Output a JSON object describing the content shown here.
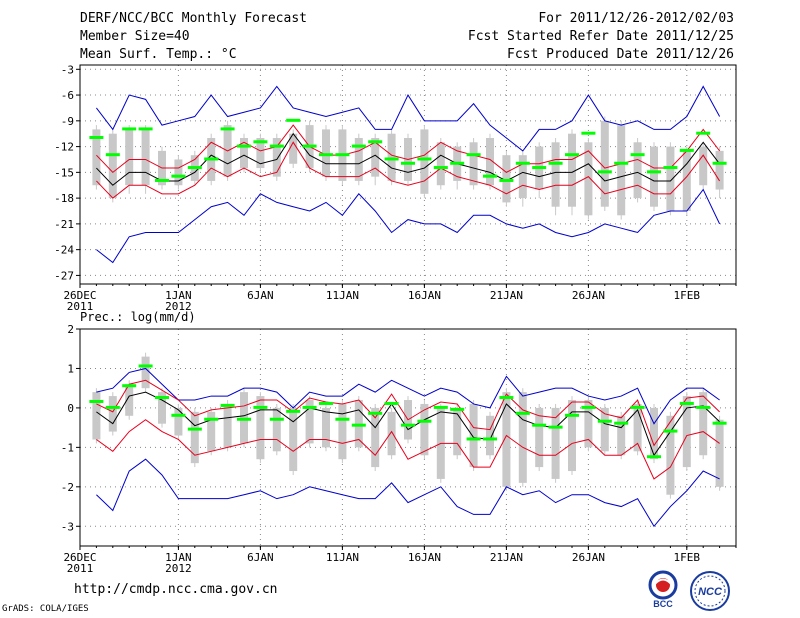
{
  "header": {
    "title": "DERF/NCC/BCC Monthly Forecast",
    "member_size": "Member Size=40",
    "variable": "Mean Surf. Temp.: °C",
    "forecast_range": "For 2011/12/26-2012/02/03",
    "fcst_started": "Fcst Started Refer Date 2011/12/25",
    "fcst_produced": "Fcst Produced Date 2011/12/26"
  },
  "footer": {
    "url": "http://cmdp.ncc.cma.gov.cn",
    "credit": "GrADS: COLA/IGES",
    "logo_bcc_text": "BCC",
    "logo_ncc_text": "NCC"
  },
  "colors": {
    "box": "#c8c8c8",
    "median": "#00ff00",
    "mean": "#000000",
    "std": "#e8001c",
    "range": "#0000cc",
    "grid": "#888888"
  },
  "chart_data": [
    {
      "type": "box-ensemble",
      "title": "Mean Surf. Temp.: °C",
      "ylabel": "°C",
      "ylim": [
        -28,
        -2.5
      ],
      "yticks": [
        -3,
        -6,
        -9,
        -12,
        -15,
        -18,
        -21,
        -24,
        -27
      ],
      "xlim": [
        0,
        40
      ],
      "xticks": [
        {
          "x": 0,
          "label": "26DEC",
          "sub": "2011"
        },
        {
          "x": 6,
          "label": "1JAN",
          "sub": "2012"
        },
        {
          "x": 11,
          "label": "6JAN",
          "sub": ""
        },
        {
          "x": 16,
          "label": "11JAN",
          "sub": ""
        },
        {
          "x": 21,
          "label": "16JAN",
          "sub": ""
        },
        {
          "x": 26,
          "label": "21JAN",
          "sub": ""
        },
        {
          "x": 31,
          "label": "26JAN",
          "sub": ""
        },
        {
          "x": 37,
          "label": "1FEB",
          "sub": ""
        }
      ],
      "days": [
        1,
        2,
        3,
        4,
        5,
        6,
        7,
        8,
        9,
        10,
        11,
        12,
        13,
        14,
        15,
        16,
        17,
        18,
        19,
        20,
        21,
        22,
        23,
        24,
        25,
        26,
        27,
        28,
        29,
        30,
        31,
        32,
        33,
        34,
        35,
        36,
        37,
        38,
        39
      ],
      "box_low": [
        -16.5,
        -18,
        -16.5,
        -16.5,
        -16.5,
        -16.5,
        -16,
        -16,
        -15.5,
        -14.5,
        -14.5,
        -15.5,
        -14,
        -14.5,
        -15.5,
        -16,
        -16,
        -15.5,
        -16,
        -16,
        -17.5,
        -16.5,
        -16,
        -16.5,
        -16.5,
        -18.5,
        -18,
        -17,
        -19,
        -19,
        -20,
        -19,
        -20,
        -18,
        -19,
        -19.5,
        -19.5,
        -16.5,
        -17
      ],
      "box_high": [
        -10,
        -10.5,
        -10,
        -10,
        -12.5,
        -13.5,
        -13,
        -11,
        -9.5,
        -11,
        -11,
        -11,
        -10.5,
        -9.5,
        -10,
        -10,
        -11,
        -11,
        -10.5,
        -11,
        -10,
        -11.5,
        -12,
        -11.5,
        -11,
        -13,
        -13,
        -12,
        -11.5,
        -10.5,
        -11.5,
        -9,
        -9.5,
        -11.5,
        -12,
        -12,
        -12.5,
        -12,
        -12.5
      ],
      "whisker_low": [
        -17,
        -18.5,
        -17.5,
        -17.5,
        -17,
        -17,
        -16.5,
        -16.5,
        -16,
        -15,
        -15,
        -16,
        -14.5,
        -15,
        -16,
        -16.5,
        -16.5,
        -16.5,
        -16.5,
        -16.5,
        -18,
        -17,
        -17,
        -17,
        -17,
        -19,
        -19,
        -18,
        -20,
        -20,
        -20.5,
        -19.5,
        -20.5,
        -18.5,
        -19.5,
        -20,
        -20,
        -17,
        -18
      ],
      "whisker_high": [
        -9.5,
        -10,
        -9.5,
        -9.5,
        -12,
        -13,
        -12.5,
        -10.5,
        -9,
        -10.5,
        -10.5,
        -10.5,
        -10,
        -9,
        -9.5,
        -9.5,
        -10.5,
        -10.5,
        -10,
        -10.5,
        -9.5,
        -11,
        -11.5,
        -11,
        -10.5,
        -12.5,
        -12.5,
        -11.5,
        -11,
        -10,
        -11,
        -8.5,
        -9,
        -11,
        -11.5,
        -11.5,
        -12,
        -11.5,
        -12
      ],
      "median": [
        -11,
        -13,
        -10,
        -10,
        -16,
        -15.5,
        -14.5,
        -13.5,
        -10,
        -12,
        -11.5,
        -12,
        -9,
        -12,
        -13,
        -13,
        -12,
        -11.5,
        -13.5,
        -14,
        -13.5,
        -14.5,
        -14,
        -13,
        -15.5,
        -16,
        -14,
        -14.5,
        -14,
        -13,
        -10.5,
        -15,
        -14,
        -13,
        -15,
        -14.5,
        -12.5,
        -10.5,
        -14
      ],
      "mean": [
        -14.5,
        -16.5,
        -15,
        -15,
        -16,
        -16,
        -15,
        -13,
        -14,
        -13,
        -14,
        -13.5,
        -10.5,
        -13,
        -14,
        -14,
        -14,
        -13,
        -14.5,
        -15,
        -14.5,
        -13,
        -14,
        -14.5,
        -15,
        -16,
        -15,
        -15.5,
        -15,
        -15,
        -14,
        -16,
        -15.5,
        -15,
        -16,
        -16,
        -14,
        -11.5,
        -14
      ],
      "std_upper": [
        -13,
        -15,
        -13.5,
        -13.5,
        -14.5,
        -14.5,
        -13.5,
        -11.5,
        -12.5,
        -11.5,
        -12.5,
        -12,
        -9.5,
        -12,
        -13,
        -13,
        -12.5,
        -11.5,
        -13,
        -13.5,
        -13,
        -11.5,
        -12.5,
        -13,
        -13.5,
        -15,
        -14,
        -14,
        -13.5,
        -13.5,
        -12.5,
        -14.5,
        -14,
        -13.5,
        -14.5,
        -14.5,
        -12.5,
        -10,
        -12.5
      ],
      "std_lower": [
        -16,
        -18,
        -16.5,
        -16.5,
        -17.5,
        -17.5,
        -16.5,
        -14.5,
        -15.5,
        -14.5,
        -15.5,
        -15,
        -11.5,
        -14.5,
        -15.5,
        -15.5,
        -15.5,
        -14.5,
        -16,
        -16.5,
        -16,
        -14.5,
        -15.5,
        -16,
        -16.5,
        -17.5,
        -16.5,
        -17,
        -16.5,
        -16.5,
        -15.5,
        -17.5,
        -17,
        -16.5,
        -17.5,
        -17.5,
        -15.5,
        -13,
        -16
      ],
      "max": [
        -7.5,
        -10,
        -6,
        -6.5,
        -9.5,
        -9,
        -8.5,
        -6,
        -8.5,
        -8,
        -7.5,
        -5,
        -7.5,
        -8,
        -8.5,
        -8,
        -7.5,
        -10,
        -10,
        -6,
        -9,
        -9,
        -9,
        -7,
        -9.5,
        -11,
        -12.5,
        -10,
        -10,
        -9,
        -6,
        -9,
        -9.5,
        -9,
        -10,
        -10,
        -8.5,
        -5,
        -8.5
      ],
      "min": [
        -24,
        -25.5,
        -22.5,
        -22,
        -22,
        -22,
        -20.5,
        -19,
        -18.5,
        -20,
        -17.5,
        -18.5,
        -19,
        -19.5,
        -18.5,
        -20,
        -17.5,
        -19.5,
        -22,
        -20.5,
        -21,
        -21,
        -22,
        -20,
        -20,
        -21,
        -21.5,
        -21,
        -22,
        -22.5,
        -22,
        -21,
        -21.5,
        -22,
        -20,
        -19.5,
        -19.5,
        -17,
        -21
      ]
    },
    {
      "type": "box-ensemble",
      "title": "Prec.: log(mm/d)",
      "ylabel": "log(mm/d)",
      "ylim": [
        -3.5,
        2
      ],
      "yticks": [
        2,
        1,
        0,
        -1,
        -2,
        -3
      ],
      "xlim": [
        0,
        40
      ],
      "xticks": [
        {
          "x": 0,
          "label": "26DEC",
          "sub": "2011"
        },
        {
          "x": 6,
          "label": "1JAN",
          "sub": "2012"
        },
        {
          "x": 11,
          "label": "6JAN",
          "sub": ""
        },
        {
          "x": 16,
          "label": "11JAN",
          "sub": ""
        },
        {
          "x": 21,
          "label": "16JAN",
          "sub": ""
        },
        {
          "x": 26,
          "label": "21JAN",
          "sub": ""
        },
        {
          "x": 31,
          "label": "26JAN",
          "sub": ""
        },
        {
          "x": 37,
          "label": "1FEB",
          "sub": ""
        }
      ],
      "days": [
        1,
        2,
        3,
        4,
        5,
        6,
        7,
        8,
        9,
        10,
        11,
        12,
        13,
        14,
        15,
        16,
        17,
        18,
        19,
        20,
        21,
        22,
        23,
        24,
        25,
        26,
        27,
        28,
        29,
        30,
        31,
        32,
        33,
        34,
        35,
        36,
        37,
        38,
        39
      ],
      "box_low": [
        -0.8,
        -0.6,
        -0.2,
        0.5,
        -0.4,
        -0.7,
        -1.4,
        -1.1,
        -1.0,
        -0.9,
        -1.3,
        -1.1,
        -1.6,
        -0.9,
        -1.0,
        -1.3,
        -1.0,
        -1.5,
        -1.2,
        -0.8,
        -1.2,
        -1.8,
        -1.2,
        -1.5,
        -1.2,
        -2.0,
        -1.9,
        -1.5,
        -1.8,
        -1.6,
        -1.0,
        -1.1,
        -1.2,
        -1.1,
        -1.3,
        -2.2,
        -1.5,
        -1.2,
        -2.0
      ],
      "box_high": [
        0.4,
        0.3,
        0.6,
        1.3,
        0.4,
        0.0,
        -0.1,
        -0.1,
        0.1,
        0.4,
        0.3,
        0.0,
        0.0,
        0.2,
        0.0,
        0.1,
        0.2,
        0.0,
        -0.1,
        0.2,
        0.1,
        0.0,
        0.0,
        0.1,
        -0.2,
        0.4,
        0.4,
        0.0,
        0.0,
        0.2,
        0.2,
        0.0,
        -0.2,
        0.1,
        0.0,
        -0.2,
        0.3,
        0.4,
        -0.3
      ],
      "whisker_low": [
        -0.9,
        -0.7,
        -0.3,
        0.4,
        -0.5,
        -0.8,
        -1.5,
        -1.2,
        -1.1,
        -1.0,
        -1.4,
        -1.2,
        -1.7,
        -1.0,
        -1.1,
        -1.4,
        -1.1,
        -1.6,
        -1.3,
        -0.9,
        -1.3,
        -1.9,
        -1.3,
        -1.6,
        -1.3,
        -2.1,
        -2.0,
        -1.6,
        -1.9,
        -1.7,
        -1.1,
        -1.2,
        -1.3,
        -1.2,
        -1.4,
        -2.3,
        -1.6,
        -1.3,
        -2.1
      ],
      "whisker_high": [
        0.5,
        0.4,
        0.7,
        1.4,
        0.5,
        0.1,
        0.0,
        0.0,
        0.2,
        0.5,
        0.4,
        0.1,
        0.1,
        0.3,
        0.1,
        0.2,
        0.3,
        0.1,
        0.0,
        0.3,
        0.2,
        0.1,
        0.1,
        0.2,
        -0.1,
        0.5,
        0.5,
        0.1,
        0.1,
        0.3,
        0.3,
        0.1,
        -0.1,
        0.2,
        0.1,
        -0.1,
        0.4,
        0.5,
        -0.2
      ],
      "median": [
        0.15,
        0.0,
        0.55,
        1.05,
        0.25,
        -0.2,
        -0.55,
        -0.3,
        0.05,
        -0.3,
        0.0,
        -0.3,
        -0.1,
        0.0,
        0.1,
        -0.3,
        -0.45,
        -0.15,
        0.1,
        -0.45,
        -0.35,
        0.0,
        -0.05,
        -0.8,
        -0.8,
        0.25,
        -0.15,
        -0.45,
        -0.5,
        -0.2,
        0.0,
        -0.35,
        -0.4,
        0.0,
        -1.25,
        -0.6,
        0.1,
        0.0,
        -0.4
      ],
      "mean": [
        -0.1,
        -0.4,
        0.3,
        0.4,
        0.2,
        -0.05,
        -0.45,
        -0.3,
        -0.25,
        -0.2,
        -0.05,
        -0.05,
        -0.35,
        0.0,
        -0.1,
        -0.15,
        -0.05,
        -0.5,
        0.1,
        -0.55,
        -0.3,
        -0.1,
        -0.15,
        -0.75,
        -0.8,
        0.1,
        -0.3,
        -0.45,
        -0.5,
        -0.1,
        -0.1,
        -0.4,
        -0.5,
        -0.05,
        -1.2,
        -0.6,
        0.0,
        0.05,
        -0.35
      ],
      "std_upper": [
        0.1,
        -0.1,
        0.6,
        0.7,
        0.45,
        0.2,
        -0.2,
        -0.05,
        0.0,
        0.05,
        0.2,
        0.2,
        -0.1,
        0.25,
        0.15,
        0.1,
        0.2,
        -0.25,
        0.35,
        -0.3,
        -0.05,
        0.15,
        0.1,
        -0.5,
        -0.55,
        0.35,
        -0.05,
        -0.2,
        -0.25,
        0.15,
        0.15,
        -0.15,
        -0.25,
        0.2,
        -0.95,
        -0.35,
        0.25,
        0.3,
        -0.1
      ],
      "std_lower": [
        -0.8,
        -1.1,
        -0.6,
        -0.3,
        -0.6,
        -0.8,
        -1.2,
        -1.1,
        -1.0,
        -0.9,
        -0.8,
        -0.8,
        -1.1,
        -0.8,
        -0.8,
        -0.9,
        -0.8,
        -1.2,
        -0.6,
        -1.3,
        -1.1,
        -0.9,
        -0.9,
        -1.5,
        -1.5,
        -0.7,
        -1.0,
        -1.2,
        -1.2,
        -0.9,
        -0.8,
        -1.2,
        -1.2,
        -0.9,
        -1.8,
        -1.5,
        -0.7,
        -0.6,
        -0.9
      ],
      "max": [
        0.4,
        0.5,
        0.9,
        1.0,
        0.6,
        0.2,
        0.2,
        0.3,
        0.3,
        0.5,
        0.5,
        0.4,
        0.0,
        0.4,
        0.3,
        0.3,
        0.6,
        0.4,
        0.7,
        0.5,
        0.3,
        0.5,
        0.4,
        0.1,
        0.0,
        0.8,
        0.3,
        0.4,
        0.5,
        0.5,
        0.3,
        0.2,
        0.3,
        0.5,
        -0.4,
        0.2,
        0.5,
        0.5,
        0.2
      ],
      "min": [
        -2.2,
        -2.6,
        -1.6,
        -1.3,
        -1.7,
        -2.3,
        -2.3,
        -2.3,
        -2.3,
        -2.2,
        -2.1,
        -2.3,
        -2.2,
        -2.0,
        -2.1,
        -2.2,
        -2.3,
        -2.3,
        -1.9,
        -2.4,
        -2.2,
        -2.0,
        -2.5,
        -2.7,
        -2.7,
        -2.0,
        -2.2,
        -2.1,
        -2.4,
        -2.2,
        -2.2,
        -2.4,
        -2.5,
        -2.3,
        -3.0,
        -2.5,
        -2.1,
        -1.6,
        -1.8
      ]
    }
  ]
}
